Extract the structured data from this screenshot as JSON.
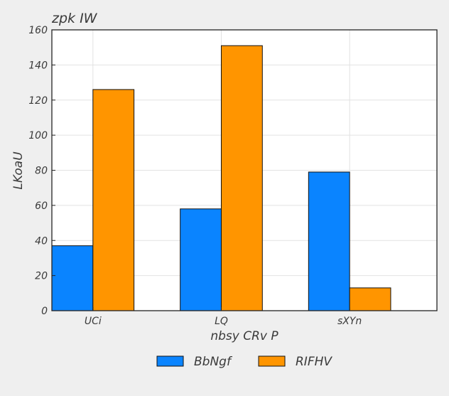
{
  "chart_data": {
    "type": "bar",
    "title": "zpk  IW",
    "xlabel": "nbsy CRv P",
    "ylabel": "LKoaU",
    "categories": [
      "UCi",
      "LQ",
      "sXYn"
    ],
    "series": [
      {
        "name": "BbNgf",
        "values": [
          37,
          58,
          79
        ],
        "color": "#0a84ff"
      },
      {
        "name": "RIFHV",
        "values": [
          126,
          151,
          13
        ],
        "color": "#ff9500"
      }
    ],
    "ylim": [
      0,
      160
    ],
    "yticks": [
      0,
      20,
      40,
      60,
      80,
      100,
      120,
      140,
      160
    ],
    "grid": true,
    "legend_position": "bottom-center"
  }
}
